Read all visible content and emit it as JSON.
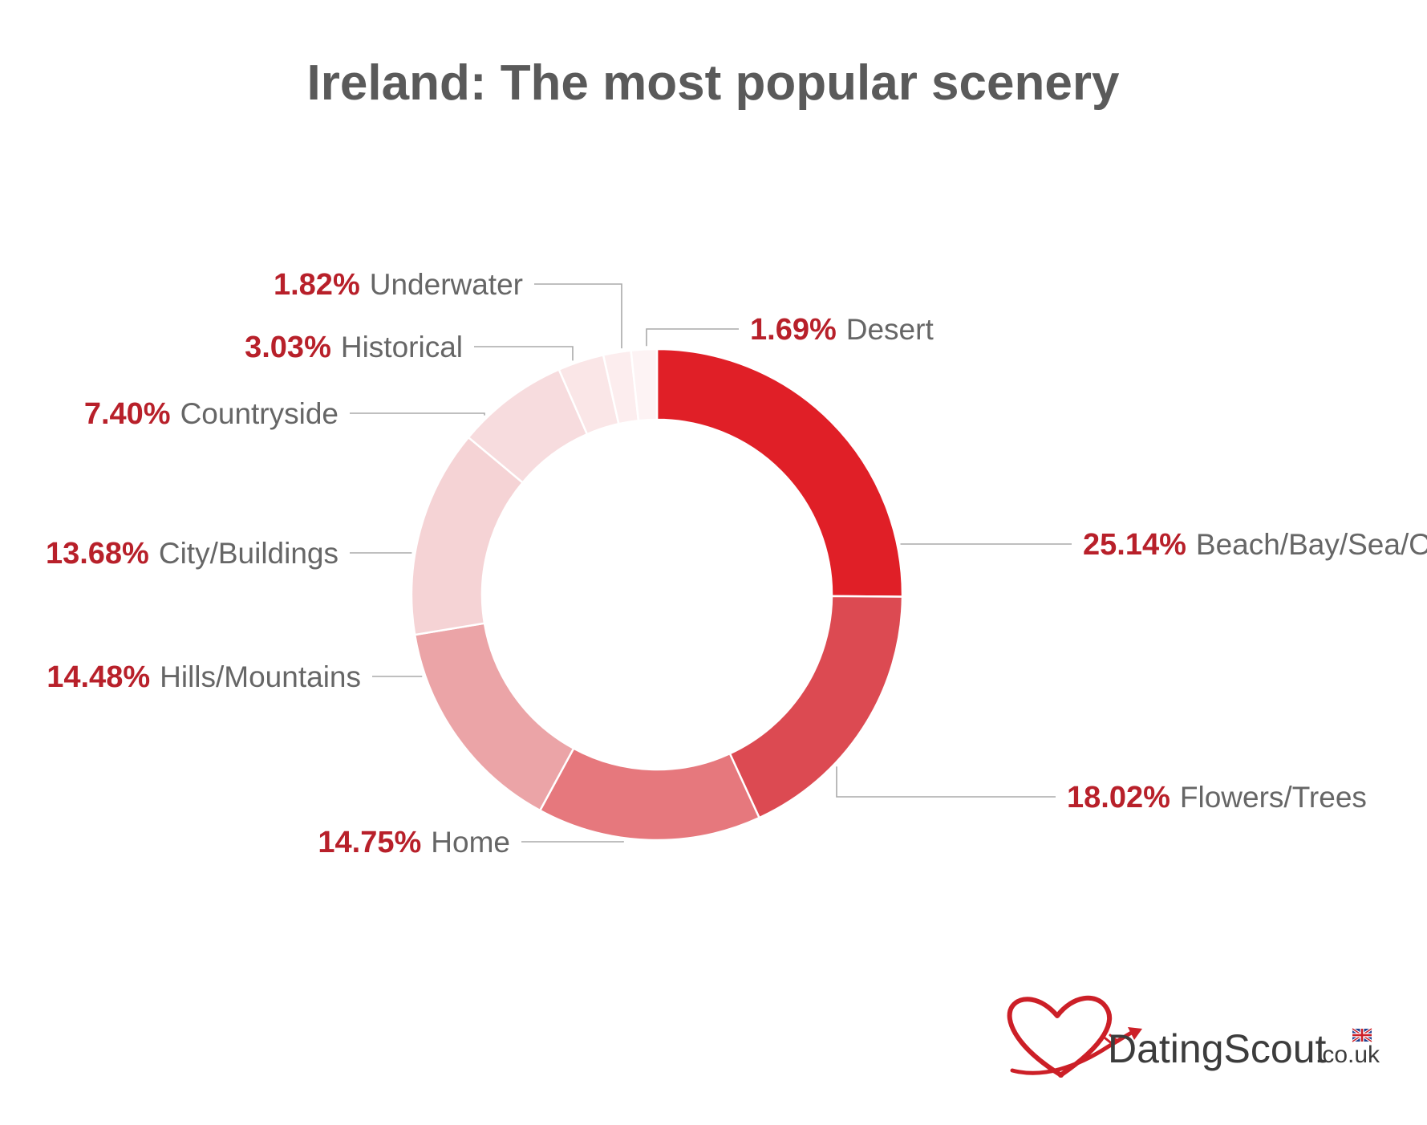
{
  "chart_data": {
    "type": "pie",
    "title": "Ireland: The most popular scenery",
    "series": [
      {
        "categories": [
          "Beach/Bay/Sea/Ocean",
          "Flowers/Trees",
          "Home",
          "Hills/Mountains",
          "City/Buildings",
          "Countryside",
          "Historical",
          "Underwater",
          "Desert"
        ],
        "values": [
          25.14,
          18.02,
          14.75,
          14.48,
          13.68,
          7.4,
          3.03,
          1.82,
          1.69
        ],
        "value_labels": [
          "25.14%",
          "18.02%",
          "14.75%",
          "14.48%",
          "13.68%",
          "7.40%",
          "3.03%",
          "1.82%",
          "1.69%"
        ]
      }
    ],
    "colors": [
      "#e01f27",
      "#dc4a52",
      "#e6787d",
      "#eba4a7",
      "#f5d3d5",
      "#f7dcde",
      "#fae6e7",
      "#fcedee",
      "#fdf3f4"
    ],
    "grid": false,
    "legend": "none"
  },
  "logo": {
    "name": "DatingScout",
    "suffix": ".co.uk"
  }
}
